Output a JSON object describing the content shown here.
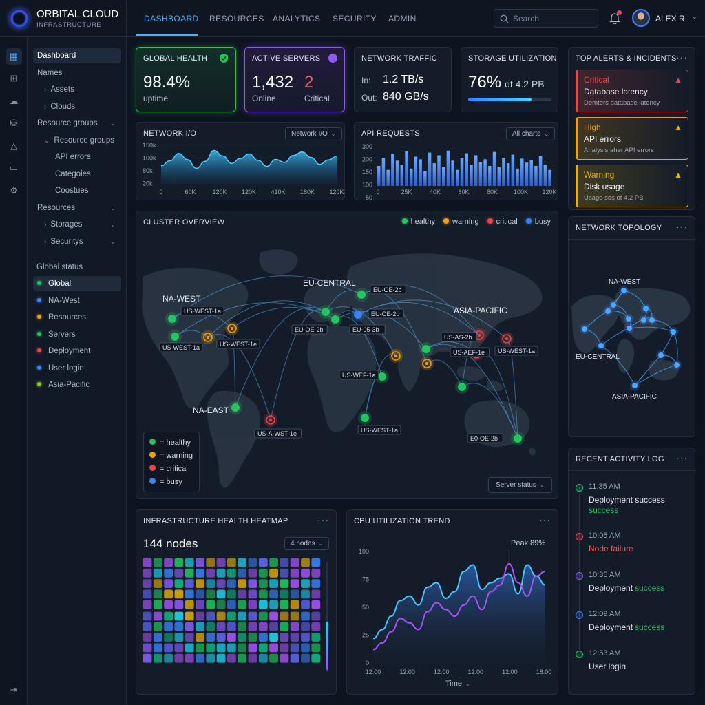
{
  "brand": {
    "name": "ORBITAL CLOUD",
    "sub": "INFRASTRUCTURE"
  },
  "nav": {
    "tabs": [
      "DASHBOARD",
      "RESOURCES",
      "ANALYTICS",
      "SECURITY",
      "ADMIN"
    ],
    "active": 0
  },
  "search": {
    "placeholder": "Search"
  },
  "user": {
    "name": "ALEX R."
  },
  "sidebar": {
    "items": [
      {
        "label": "Dashboard",
        "selected": true
      },
      {
        "label": "Names"
      },
      {
        "label": "Assets",
        "prefix": "›"
      },
      {
        "label": "Clouds",
        "prefix": "›"
      },
      {
        "label": "Resource groups",
        "chev": "⌄"
      },
      {
        "label": "Resource groups",
        "prefix": "⌄"
      },
      {
        "label": "API errors"
      },
      {
        "label": "Categoies"
      },
      {
        "label": "Coostues"
      },
      {
        "label": "Resources",
        "chev": "⌄"
      },
      {
        "label": "Storages",
        "prefix": "›",
        "chev": "⌄"
      },
      {
        "label": "Securitys",
        "prefix": "›",
        "chev": "⌄"
      }
    ],
    "status_header": "Global status",
    "status": [
      {
        "label": "Global",
        "color": "#22c55e",
        "selected": true
      },
      {
        "label": "NA-West",
        "color": "#3b82f6"
      },
      {
        "label": "Resources",
        "color": "#f59e0b"
      },
      {
        "label": "Servers",
        "color": "#22c55e"
      },
      {
        "label": "Deployment",
        "color": "#ef4444"
      },
      {
        "label": "User login",
        "color": "#3b82f6"
      },
      {
        "label": "Asia-Pacific",
        "color": "#84cc16"
      }
    ]
  },
  "cards": {
    "health": {
      "title": "GLOBAL HEALTH",
      "value": "98.4%",
      "sub": "uptime"
    },
    "servers": {
      "title": "ACTIVE SERVERS",
      "online": "1,432",
      "online_label": "Online",
      "critical": "2",
      "critical_label": "Critical"
    },
    "traffic": {
      "title": "NETWORK TRAFFIC",
      "in_label": "In:",
      "in_value": "1.2 TB/s",
      "out_label": "Out:",
      "out_value": "840 GB/s"
    },
    "storage": {
      "title": "STORAGE UTILIZATION",
      "value": "76%",
      "of": "of 4.2 PB",
      "fill": 0.76
    }
  },
  "network_io": {
    "title": "NETWORK I/O",
    "dropdown": "Network I/O",
    "y_ticks": [
      "150k",
      "100k",
      "80k",
      "20k"
    ],
    "x_ticks": [
      "0",
      "60K",
      "120K",
      "120K",
      "410K",
      "180K",
      "120K"
    ],
    "values": [
      70,
      90,
      120,
      95,
      60,
      88,
      132,
      110,
      80,
      100,
      118,
      92,
      68,
      96,
      84,
      112,
      126,
      104,
      76,
      94,
      110
    ]
  },
  "api_requests": {
    "title": "API REQUESTS",
    "dropdown": "All charts",
    "y_ticks": [
      "300",
      "200",
      "150",
      "100",
      "50"
    ],
    "x_ticks": [
      "0",
      "25K",
      "40K",
      "60K",
      "80K",
      "100K",
      "120K"
    ],
    "values": [
      150,
      210,
      120,
      240,
      190,
      160,
      260,
      130,
      220,
      200,
      110,
      250,
      170,
      230,
      140,
      265,
      190,
      120,
      210,
      245,
      160,
      230,
      180,
      200,
      150,
      255,
      140,
      210,
      170,
      235,
      130,
      205,
      175,
      195,
      150,
      225,
      160,
      120
    ]
  },
  "cluster": {
    "title": "CLUSTER OVERVIEW",
    "legend": [
      {
        "label": "healthy",
        "color": "#22c55e"
      },
      {
        "label": "warning",
        "color": "#f59e0b"
      },
      {
        "label": "critical",
        "color": "#ef4444"
      },
      {
        "label": "busy",
        "color": "#3b82f6"
      }
    ],
    "regions": [
      "NA-WEST",
      "EU-CENTRAL",
      "ASIA-PACIFIC",
      "NA-EAST"
    ],
    "tags": [
      "US-WEST-1a",
      "US-WEST-1a",
      "US-WEST-1e",
      "EU-OE-2b",
      "EU-OE-2b",
      "EU-OE-2b",
      "EU-05-3b",
      "US-AS-2b",
      "US-AEF-1e",
      "US-WEST-1a",
      "US-WEF-1a",
      "US-WEST-1a",
      "E0-OE-2b",
      "US-A-WST-1e"
    ],
    "key": [
      "= healthy",
      "= warning",
      "= critical",
      "= busy"
    ],
    "dropdown": "Server status"
  },
  "alerts": {
    "title": "TOP ALERTS & INCIDENTS",
    "items": [
      {
        "level": "Critical",
        "title": "Database latency",
        "desc": "Demters database latency",
        "color": "#ef4444"
      },
      {
        "level": "High",
        "title": "API errors",
        "desc": "Analysis aher API errors",
        "color": "#f59e0b"
      },
      {
        "level": "Warning",
        "title": "Disk usage",
        "desc": "Usage sos of 4.2 PB",
        "color": "#eab308"
      }
    ]
  },
  "topology": {
    "title": "NETWORK TOPOLOGY",
    "labels": [
      "NA-WEST",
      "EU-CENTRAL",
      "ASIA-PACIFIC"
    ]
  },
  "activity": {
    "title": "RECENT ACTIVITY LOG",
    "items": [
      {
        "time": "11:35 AM",
        "text": "Deployment success",
        "status": "success",
        "color": "#22c55e"
      },
      {
        "time": "10:05 AM",
        "text": "",
        "status": "Node failure",
        "color": "#ef4444"
      },
      {
        "time": "10:35 AM",
        "text": "Deployment",
        "status": "success",
        "color": "#8b5cf6"
      },
      {
        "time": "12:09 AM",
        "text": "Deployment",
        "status": "success",
        "color": "#3b82f6"
      },
      {
        "time": "12:53 AM",
        "text": "User login",
        "status": "",
        "color": "#22c55e"
      }
    ]
  },
  "heatmap": {
    "title": "INFRASTRUCTURE HEALTH HEATMAP",
    "count": "144 nodes",
    "dropdown": "4 nodes"
  },
  "cpu": {
    "title": "CPU UTILIZATION TREND",
    "peak": "Peak 89%",
    "y_ticks": [
      "100",
      "75",
      "50",
      "25",
      "0"
    ],
    "x_ticks": [
      "12:00",
      "12:00",
      "12:00",
      "12:00",
      "12:00",
      "18:00"
    ],
    "xlabel": "Time",
    "series_a": [
      22,
      30,
      42,
      56,
      60,
      52,
      68,
      72,
      58,
      64,
      82,
      88,
      66,
      72,
      76,
      80,
      62,
      88,
      78,
      70
    ],
    "series_b": [
      12,
      18,
      28,
      40,
      36,
      30,
      46,
      54,
      48,
      42,
      52,
      60,
      48,
      64,
      70,
      89,
      72,
      60,
      78,
      82
    ]
  }
}
